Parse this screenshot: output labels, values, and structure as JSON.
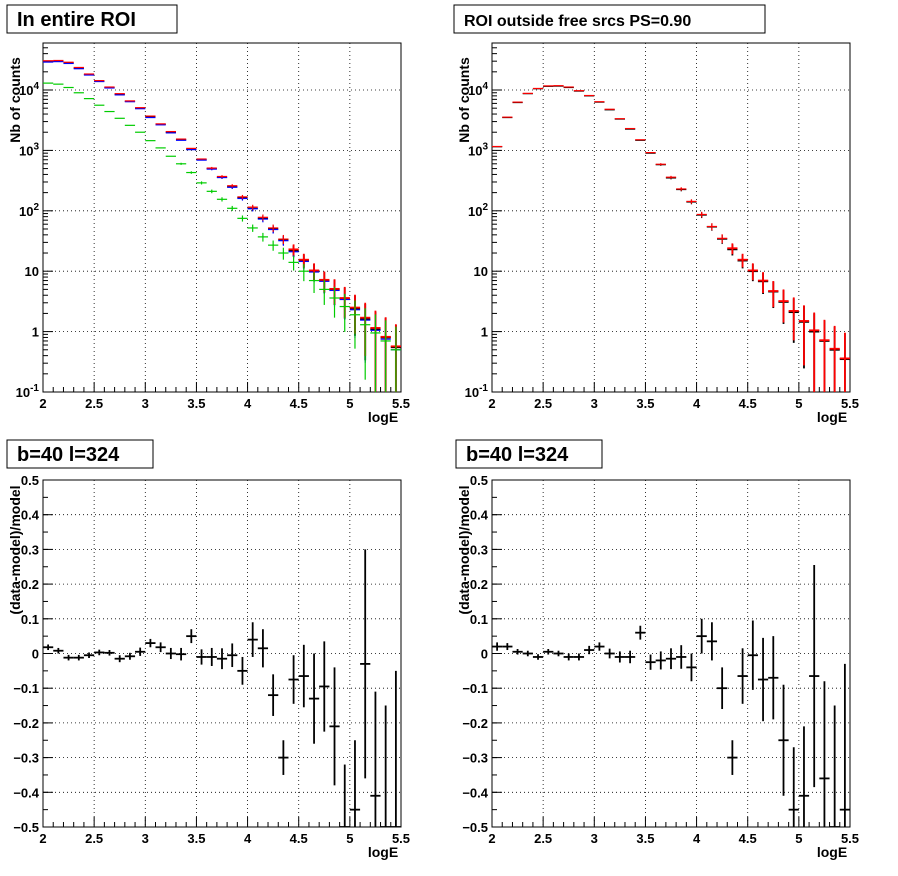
{
  "colors": {
    "black": "#000000",
    "red": "#ff0000",
    "blue": "#0000ff",
    "green": "#00cc00",
    "grid": "#000000"
  },
  "chart_data": [
    {
      "type": "scatter",
      "title": "In entire ROI",
      "xlabel": "logE",
      "ylabel": "Nb of counts",
      "xlim": [
        2,
        5.5
      ],
      "ylim": [
        0.1,
        60000
      ],
      "yscale": "log",
      "grid": true,
      "xticks": [
        "2",
        "2.5",
        "3",
        "3.5",
        "4",
        "4.5",
        "5",
        "5.5"
      ],
      "yticks": [
        "10^-1",
        "1",
        "10",
        "10^2",
        "10^3",
        "10^4"
      ],
      "x": [
        2.05,
        2.15,
        2.25,
        2.35,
        2.45,
        2.55,
        2.65,
        2.75,
        2.85,
        2.95,
        3.05,
        3.15,
        3.25,
        3.35,
        3.45,
        3.55,
        3.65,
        3.75,
        3.85,
        3.95,
        4.05,
        4.15,
        4.25,
        4.35,
        4.45,
        4.55,
        4.65,
        4.75,
        4.85,
        4.95,
        5.05,
        5.15,
        5.25,
        5.35,
        5.45
      ],
      "series": [
        {
          "color": "black",
          "values": [
            29500,
            30000,
            28000,
            23000,
            18000,
            14000,
            11000,
            8500,
            6500,
            5000,
            3600,
            2700,
            2000,
            1500,
            1050,
            700,
            500,
            360,
            250,
            165,
            110,
            75,
            50,
            33,
            22,
            15,
            10,
            7,
            5,
            3.5,
            2.4,
            1.6,
            1.1,
            0.8,
            0.55
          ]
        },
        {
          "color": "blue",
          "values": [
            29000,
            29500,
            27500,
            22500,
            17700,
            13800,
            10800,
            8300,
            6400,
            4900,
            3500,
            2650,
            1950,
            1470,
            1030,
            690,
            490,
            355,
            245,
            160,
            108,
            73,
            49,
            32,
            21,
            14.5,
            9.7,
            6.8,
            4.8,
            3.4,
            2.3,
            1.55,
            1.05,
            0.75,
            0.5
          ]
        },
        {
          "color": "red",
          "values": [
            30500,
            30800,
            28800,
            23600,
            18400,
            14300,
            11200,
            8700,
            6600,
            5100,
            3700,
            2750,
            2050,
            1540,
            1080,
            720,
            510,
            370,
            260,
            170,
            115,
            78,
            52,
            34,
            23,
            15.5,
            10.3,
            7.2,
            5.1,
            3.6,
            2.5,
            1.7,
            1.15,
            0.82,
            0.57
          ]
        },
        {
          "color": "green",
          "values": [
            13000,
            12500,
            11000,
            9000,
            7200,
            5600,
            4400,
            3400,
            2600,
            2000,
            1450,
            1100,
            800,
            600,
            430,
            290,
            210,
            155,
            110,
            75,
            52,
            37,
            27,
            20,
            14,
            10,
            7,
            5,
            3.6,
            2.6,
            1.9,
            1.3,
            0.95,
            0.7,
            0.5
          ]
        }
      ]
    },
    {
      "type": "scatter",
      "title": "ROI outside free srcs PS=0.90",
      "xlabel": "logE",
      "ylabel": "Nb of counts",
      "xlim": [
        2,
        5.5
      ],
      "ylim": [
        0.1,
        60000
      ],
      "yscale": "log",
      "grid": true,
      "xticks": [
        "2",
        "2.5",
        "3",
        "3.5",
        "4",
        "4.5",
        "5",
        "5.5"
      ],
      "yticks": [
        "10^-1",
        "1",
        "10",
        "10^2",
        "10^3",
        "10^4"
      ],
      "x": [
        2.05,
        2.15,
        2.25,
        2.35,
        2.45,
        2.55,
        2.65,
        2.75,
        2.85,
        2.95,
        3.05,
        3.15,
        3.25,
        3.35,
        3.45,
        3.55,
        3.65,
        3.75,
        3.85,
        3.95,
        4.05,
        4.15,
        4.25,
        4.35,
        4.45,
        4.55,
        4.65,
        4.75,
        4.85,
        4.95,
        5.05,
        5.15,
        5.25,
        5.35,
        5.45
      ],
      "series": [
        {
          "color": "black",
          "values": [
            1150,
            3500,
            6200,
            8700,
            10500,
            11500,
            11600,
            11000,
            9600,
            8000,
            6300,
            4700,
            3300,
            2250,
            1470,
            900,
            580,
            350,
            225,
            140,
            85,
            54,
            34,
            23,
            15,
            10,
            6.8,
            4.6,
            3.1,
            2.1,
            1.45,
            1.0,
            0.7,
            0.5,
            0.35
          ]
        },
        {
          "color": "red",
          "values": [
            1160,
            3550,
            6300,
            8800,
            10600,
            11700,
            11800,
            11200,
            9750,
            8100,
            6400,
            4800,
            3350,
            2300,
            1500,
            920,
            590,
            360,
            230,
            143,
            87,
            55,
            35,
            24,
            15.5,
            10.3,
            7,
            4.7,
            3.2,
            2.2,
            1.5,
            1.05,
            0.72,
            0.52,
            0.36
          ]
        }
      ]
    },
    {
      "type": "scatter",
      "title": "b=40 l=324",
      "xlabel": "logE",
      "ylabel": "(data-model)/model",
      "xlim": [
        2,
        5.5
      ],
      "ylim": [
        -0.5,
        0.5
      ],
      "grid": true,
      "xticks": [
        "2",
        "2.5",
        "3",
        "3.5",
        "4",
        "4.5",
        "5",
        "5.5"
      ],
      "yticks": [
        "-0.5",
        "-0.4",
        "-0.3",
        "-0.2",
        "-0.1",
        "0",
        "0.1",
        "0.2",
        "0.3",
        "0.4",
        "0.5"
      ],
      "x": [
        2.05,
        2.15,
        2.25,
        2.35,
        2.45,
        2.55,
        2.65,
        2.75,
        2.85,
        2.95,
        3.05,
        3.15,
        3.25,
        3.35,
        3.45,
        3.55,
        3.65,
        3.75,
        3.85,
        3.95,
        4.05,
        4.15,
        4.25,
        4.35,
        4.45,
        4.55,
        4.65,
        4.75,
        4.85,
        4.95,
        5.05,
        5.15,
        5.25,
        5.35,
        5.45
      ],
      "values": [
        0.018,
        0.008,
        -0.012,
        -0.012,
        -0.005,
        0.003,
        0.002,
        -0.015,
        -0.008,
        0.005,
        0.03,
        0.018,
        0.0,
        -0.002,
        0.05,
        -0.01,
        -0.01,
        -0.015,
        -0.005,
        -0.05,
        0.04,
        0.015,
        -0.12,
        -0.3,
        -0.075,
        -0.065,
        -0.13,
        -0.095,
        -0.21,
        -0.5,
        -0.45,
        -0.03,
        -0.41,
        -0.5,
        -0.5
      ],
      "errors": [
        0.008,
        0.008,
        0.008,
        0.008,
        0.008,
        0.008,
        0.008,
        0.01,
        0.01,
        0.012,
        0.012,
        0.014,
        0.016,
        0.018,
        0.02,
        0.022,
        0.026,
        0.03,
        0.034,
        0.04,
        0.05,
        0.055,
        0.06,
        0.05,
        0.07,
        0.09,
        0.13,
        0.13,
        0.17,
        0.18,
        0.2,
        0.33,
        0.3,
        0.35,
        0.45
      ]
    },
    {
      "type": "scatter",
      "title": "b=40 l=324",
      "xlabel": "logE",
      "ylabel": "(data-model)/model",
      "xlim": [
        2,
        5.5
      ],
      "ylim": [
        -0.5,
        0.5
      ],
      "grid": true,
      "xticks": [
        "2",
        "2.5",
        "3",
        "3.5",
        "4",
        "4.5",
        "5",
        "5.5"
      ],
      "yticks": [
        "-0.5",
        "-0.4",
        "-0.3",
        "-0.2",
        "-0.1",
        "0",
        "0.1",
        "0.2",
        "0.3",
        "0.4",
        "0.5"
      ],
      "x": [
        2.05,
        2.15,
        2.25,
        2.35,
        2.45,
        2.55,
        2.65,
        2.75,
        2.85,
        2.95,
        3.05,
        3.15,
        3.25,
        3.35,
        3.45,
        3.55,
        3.65,
        3.75,
        3.85,
        3.95,
        4.05,
        4.15,
        4.25,
        4.35,
        4.45,
        4.55,
        4.65,
        4.75,
        4.85,
        4.95,
        5.05,
        5.15,
        5.25,
        5.35,
        5.45
      ],
      "values": [
        0.02,
        0.02,
        0.005,
        0.0,
        -0.01,
        0.005,
        0.0,
        -0.01,
        -0.01,
        0.01,
        0.02,
        0.0,
        -0.01,
        -0.01,
        0.06,
        -0.025,
        -0.02,
        -0.015,
        -0.01,
        -0.04,
        0.05,
        0.035,
        -0.1,
        -0.3,
        -0.065,
        -0.005,
        -0.075,
        -0.07,
        -0.25,
        -0.45,
        -0.41,
        -0.065,
        -0.36,
        -0.5,
        -0.45
      ],
      "errors": [
        0.012,
        0.01,
        0.008,
        0.008,
        0.008,
        0.008,
        0.008,
        0.01,
        0.01,
        0.012,
        0.012,
        0.014,
        0.016,
        0.018,
        0.02,
        0.022,
        0.026,
        0.03,
        0.034,
        0.04,
        0.05,
        0.055,
        0.06,
        0.05,
        0.08,
        0.1,
        0.12,
        0.12,
        0.16,
        0.18,
        0.2,
        0.32,
        0.28,
        0.35,
        0.42
      ]
    }
  ]
}
